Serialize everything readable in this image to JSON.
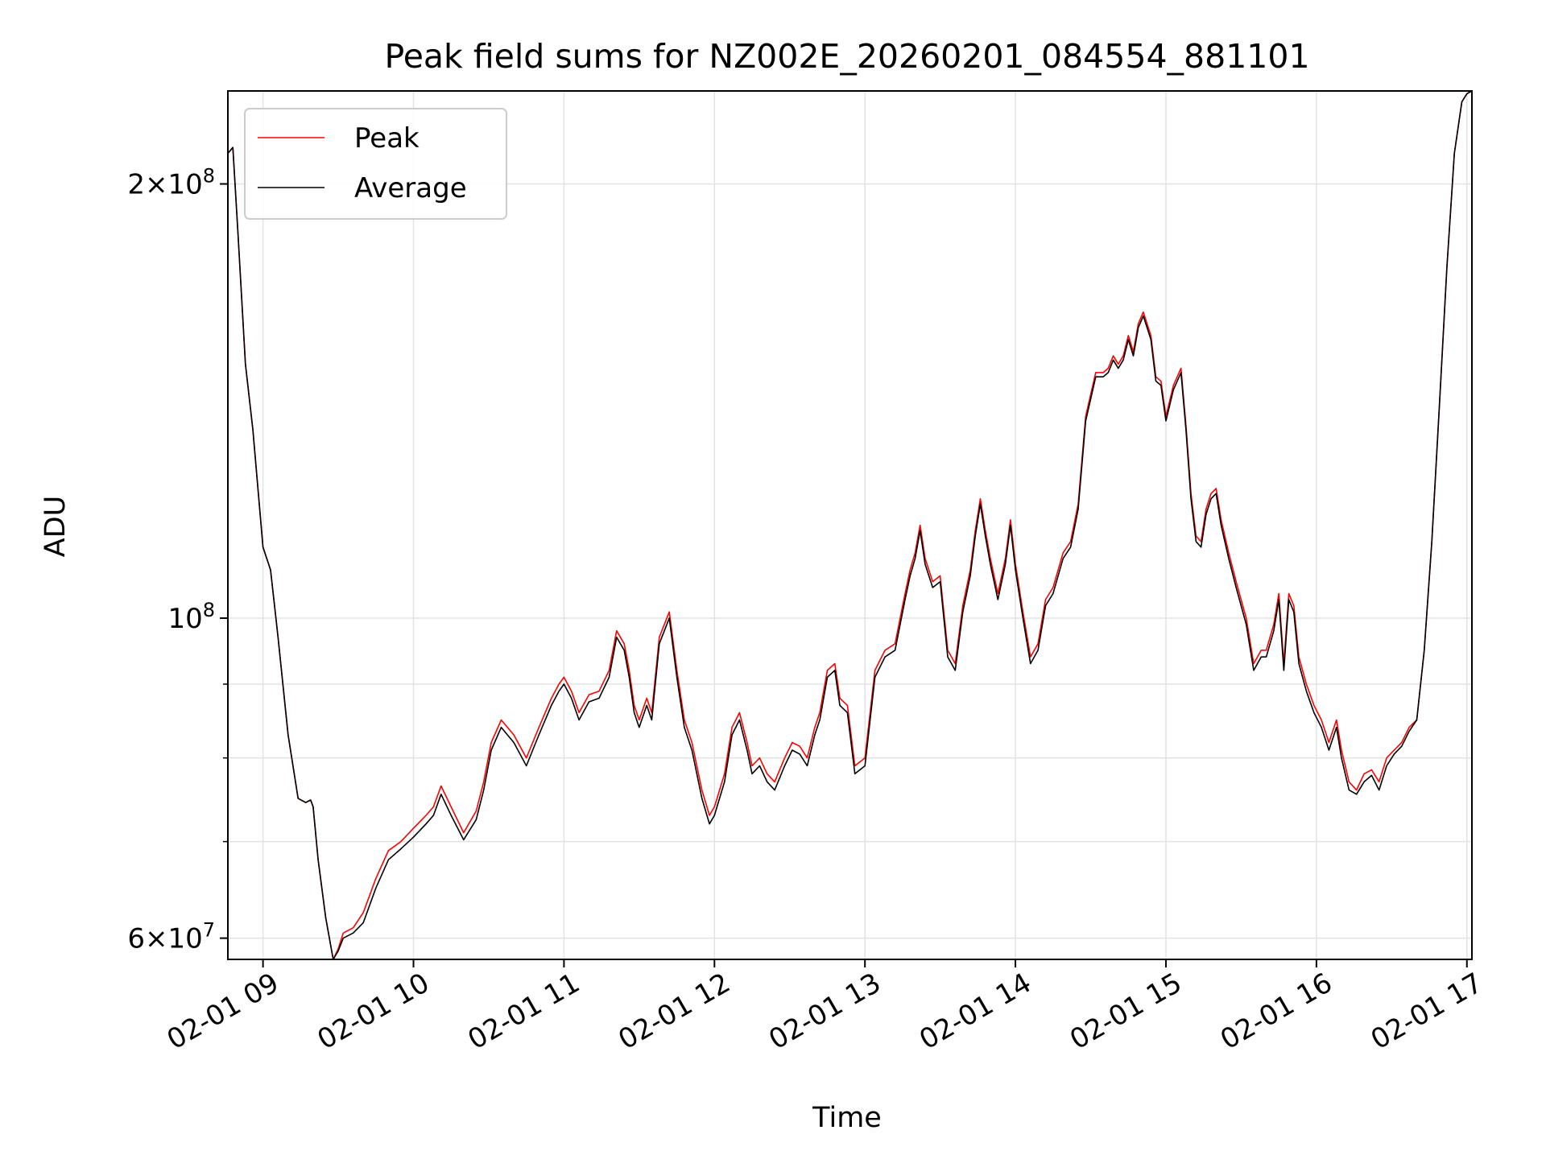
{
  "chart_data": {
    "type": "line",
    "title": "Peak field sums for NZ002E_20260201_084554_881101",
    "xlabel": "Time",
    "ylabel": "ADU",
    "y_scale": "log",
    "ylim": [
      58000000,
      232000000
    ],
    "xlim": [
      "2026-02-01 08:46",
      "2026-02-01 17:02"
    ],
    "x_ticks": [
      "2026-02-01 09:00",
      "2026-02-01 10:00",
      "2026-02-01 11:00",
      "2026-02-01 12:00",
      "2026-02-01 13:00",
      "2026-02-01 14:00",
      "2026-02-01 15:00",
      "2026-02-01 16:00",
      "2026-02-01 17:00"
    ],
    "x_tick_labels": [
      "02-01 09",
      "02-01 10",
      "02-01 11",
      "02-01 12",
      "02-01 13",
      "02-01 14",
      "02-01 15",
      "02-01 16",
      "02-01 17"
    ],
    "y_major_ticks": [
      {
        "value": 60000000,
        "mantissa": "6",
        "base": "10",
        "exp": "7"
      },
      {
        "value": 100000000,
        "mantissa": "",
        "base": "10",
        "exp": "8"
      },
      {
        "value": 200000000,
        "mantissa": "2",
        "base": "10",
        "exp": "8"
      }
    ],
    "y_minor_ticks": [
      70000000,
      80000000,
      90000000
    ],
    "grid": true,
    "legend_position": "top-left",
    "colors": {
      "peak": "#ff0000",
      "average": "#000000",
      "grid": "#e3e3e3"
    },
    "series": [
      {
        "name": "Peak",
        "color": "#ff0000",
        "x": [
          "2026-02-01 08:46",
          "2026-02-01 08:48",
          "2026-02-01 08:50",
          "2026-02-01 08:53",
          "2026-02-01 08:56",
          "2026-02-01 09:00",
          "2026-02-01 09:03",
          "2026-02-01 09:06",
          "2026-02-01 09:10",
          "2026-02-01 09:14",
          "2026-02-01 09:17",
          "2026-02-01 09:19",
          "2026-02-01 09:20",
          "2026-02-01 09:22",
          "2026-02-01 09:25",
          "2026-02-01 09:28",
          "2026-02-01 09:30",
          "2026-02-01 09:32",
          "2026-02-01 09:36",
          "2026-02-01 09:40",
          "2026-02-01 09:45",
          "2026-02-01 09:50",
          "2026-02-01 09:55",
          "2026-02-01 10:00",
          "2026-02-01 10:05",
          "2026-02-01 10:08",
          "2026-02-01 10:11",
          "2026-02-01 10:15",
          "2026-02-01 10:20",
          "2026-02-01 10:25",
          "2026-02-01 10:28",
          "2026-02-01 10:31",
          "2026-02-01 10:35",
          "2026-02-01 10:40",
          "2026-02-01 10:45",
          "2026-02-01 10:50",
          "2026-02-01 10:55",
          "2026-02-01 10:58",
          "2026-02-01 11:00",
          "2026-02-01 11:03",
          "2026-02-01 11:06",
          "2026-02-01 11:10",
          "2026-02-01 11:14",
          "2026-02-01 11:18",
          "2026-02-01 11:21",
          "2026-02-01 11:24",
          "2026-02-01 11:26",
          "2026-02-01 11:28",
          "2026-02-01 11:30",
          "2026-02-01 11:33",
          "2026-02-01 11:35",
          "2026-02-01 11:38",
          "2026-02-01 11:42",
          "2026-02-01 11:45",
          "2026-02-01 11:48",
          "2026-02-01 11:51",
          "2026-02-01 11:55",
          "2026-02-01 11:58",
          "2026-02-01 12:00",
          "2026-02-01 12:04",
          "2026-02-01 12:07",
          "2026-02-01 12:10",
          "2026-02-01 12:13",
          "2026-02-01 12:15",
          "2026-02-01 12:18",
          "2026-02-01 12:21",
          "2026-02-01 12:24",
          "2026-02-01 12:28",
          "2026-02-01 12:31",
          "2026-02-01 12:34",
          "2026-02-01 12:37",
          "2026-02-01 12:40",
          "2026-02-01 12:42",
          "2026-02-01 12:45",
          "2026-02-01 12:48",
          "2026-02-01 12:50",
          "2026-02-01 12:53",
          "2026-02-01 12:56",
          "2026-02-01 13:00",
          "2026-02-01 13:04",
          "2026-02-01 13:08",
          "2026-02-01 13:12",
          "2026-02-01 13:16",
          "2026-02-01 13:18",
          "2026-02-01 13:20",
          "2026-02-01 13:22",
          "2026-02-01 13:24",
          "2026-02-01 13:27",
          "2026-02-01 13:30",
          "2026-02-01 13:33",
          "2026-02-01 13:36",
          "2026-02-01 13:39",
          "2026-02-01 13:42",
          "2026-02-01 13:44",
          "2026-02-01 13:46",
          "2026-02-01 13:48",
          "2026-02-01 13:50",
          "2026-02-01 13:53",
          "2026-02-01 13:56",
          "2026-02-01 13:58",
          "2026-02-01 14:00",
          "2026-02-01 14:03",
          "2026-02-01 14:06",
          "2026-02-01 14:09",
          "2026-02-01 14:12",
          "2026-02-01 14:15",
          "2026-02-01 14:19",
          "2026-02-01 14:22",
          "2026-02-01 14:25",
          "2026-02-01 14:28",
          "2026-02-01 14:32",
          "2026-02-01 14:35",
          "2026-02-01 14:37",
          "2026-02-01 14:39",
          "2026-02-01 14:41",
          "2026-02-01 14:43",
          "2026-02-01 14:45",
          "2026-02-01 14:47",
          "2026-02-01 14:49",
          "2026-02-01 14:51",
          "2026-02-01 14:54",
          "2026-02-01 14:56",
          "2026-02-01 14:58",
          "2026-02-01 15:00",
          "2026-02-01 15:03",
          "2026-02-01 15:06",
          "2026-02-01 15:08",
          "2026-02-01 15:10",
          "2026-02-01 15:12",
          "2026-02-01 15:14",
          "2026-02-01 15:16",
          "2026-02-01 15:18",
          "2026-02-01 15:20",
          "2026-02-01 15:22",
          "2026-02-01 15:25",
          "2026-02-01 15:28",
          "2026-02-01 15:32",
          "2026-02-01 15:35",
          "2026-02-01 15:38",
          "2026-02-01 15:40",
          "2026-02-01 15:43",
          "2026-02-01 15:45",
          "2026-02-01 15:47",
          "2026-02-01 15:49",
          "2026-02-01 15:51",
          "2026-02-01 15:53",
          "2026-02-01 15:56",
          "2026-02-01 15:59",
          "2026-02-01 16:02",
          "2026-02-01 16:05",
          "2026-02-01 16:08",
          "2026-02-01 16:10",
          "2026-02-01 16:13",
          "2026-02-01 16:16",
          "2026-02-01 16:19",
          "2026-02-01 16:22",
          "2026-02-01 16:25",
          "2026-02-01 16:28",
          "2026-02-01 16:31",
          "2026-02-01 16:34",
          "2026-02-01 16:37",
          "2026-02-01 16:40",
          "2026-02-01 16:43",
          "2026-02-01 16:46",
          "2026-02-01 16:49",
          "2026-02-01 16:52",
          "2026-02-01 16:55",
          "2026-02-01 16:58",
          "2026-02-01 17:00",
          "2026-02-01 17:02"
        ],
        "y": [
          210000000,
          212000000,
          185000000,
          150000000,
          135000000,
          112000000,
          108000000,
          97000000,
          83000000,
          75000000,
          74500000,
          74800000,
          74000000,
          68000000,
          62000000,
          58000000,
          59000000,
          60500000,
          61000000,
          62500000,
          66000000,
          69000000,
          70000000,
          71500000,
          73000000,
          74000000,
          76500000,
          74000000,
          71000000,
          73500000,
          77000000,
          82000000,
          85000000,
          83000000,
          80000000,
          84000000,
          88000000,
          90000000,
          91000000,
          89000000,
          86000000,
          88500000,
          89000000,
          92000000,
          98000000,
          96000000,
          92000000,
          87000000,
          85000000,
          88000000,
          86000000,
          97000000,
          101000000,
          92000000,
          85000000,
          82000000,
          76000000,
          73000000,
          74000000,
          78000000,
          84000000,
          86000000,
          82000000,
          79000000,
          80000000,
          78000000,
          77000000,
          80000000,
          82000000,
          81500000,
          80000000,
          84000000,
          86000000,
          92000000,
          93000000,
          88000000,
          87000000,
          79000000,
          80000000,
          92000000,
          95000000,
          96000000,
          104000000,
          108000000,
          111000000,
          116000000,
          110000000,
          106000000,
          107000000,
          95000000,
          93000000,
          102000000,
          108000000,
          115000000,
          121000000,
          115000000,
          110000000,
          104000000,
          110000000,
          117000000,
          109000000,
          101000000,
          94000000,
          96000000,
          103000000,
          105000000,
          111000000,
          113000000,
          120000000,
          138000000,
          148000000,
          148000000,
          149000000,
          152000000,
          150000000,
          152000000,
          157000000,
          153000000,
          160000000,
          163000000,
          157000000,
          147000000,
          146000000,
          138000000,
          145000000,
          149000000,
          136000000,
          122000000,
          114000000,
          113000000,
          119000000,
          122000000,
          123000000,
          117000000,
          111000000,
          106000000,
          100000000,
          93000000,
          95000000,
          95000000,
          99000000,
          104000000,
          93000000,
          104000000,
          102000000,
          94000000,
          90000000,
          87000000,
          85000000,
          82000000,
          85000000,
          81000000,
          77000000,
          76000000,
          78000000,
          78500000,
          77000000,
          80000000,
          81000000,
          82000000,
          84000000,
          85000000,
          95000000,
          113000000,
          140000000,
          175000000,
          210000000,
          228000000,
          231000000,
          232000000
        ]
      },
      {
        "name": "Average",
        "color": "#000000",
        "x": [
          "2026-02-01 08:46",
          "2026-02-01 08:48",
          "2026-02-01 08:50",
          "2026-02-01 08:53",
          "2026-02-01 08:56",
          "2026-02-01 09:00",
          "2026-02-01 09:03",
          "2026-02-01 09:06",
          "2026-02-01 09:10",
          "2026-02-01 09:14",
          "2026-02-01 09:17",
          "2026-02-01 09:19",
          "2026-02-01 09:20",
          "2026-02-01 09:22",
          "2026-02-01 09:25",
          "2026-02-01 09:28",
          "2026-02-01 09:30",
          "2026-02-01 09:32",
          "2026-02-01 09:36",
          "2026-02-01 09:40",
          "2026-02-01 09:45",
          "2026-02-01 09:50",
          "2026-02-01 09:55",
          "2026-02-01 10:00",
          "2026-02-01 10:05",
          "2026-02-01 10:08",
          "2026-02-01 10:11",
          "2026-02-01 10:15",
          "2026-02-01 10:20",
          "2026-02-01 10:25",
          "2026-02-01 10:28",
          "2026-02-01 10:31",
          "2026-02-01 10:35",
          "2026-02-01 10:40",
          "2026-02-01 10:45",
          "2026-02-01 10:50",
          "2026-02-01 10:55",
          "2026-02-01 10:58",
          "2026-02-01 11:00",
          "2026-02-01 11:03",
          "2026-02-01 11:06",
          "2026-02-01 11:10",
          "2026-02-01 11:14",
          "2026-02-01 11:18",
          "2026-02-01 11:21",
          "2026-02-01 11:24",
          "2026-02-01 11:26",
          "2026-02-01 11:28",
          "2026-02-01 11:30",
          "2026-02-01 11:33",
          "2026-02-01 11:35",
          "2026-02-01 11:38",
          "2026-02-01 11:42",
          "2026-02-01 11:45",
          "2026-02-01 11:48",
          "2026-02-01 11:51",
          "2026-02-01 11:55",
          "2026-02-01 11:58",
          "2026-02-01 12:00",
          "2026-02-01 12:04",
          "2026-02-01 12:07",
          "2026-02-01 12:10",
          "2026-02-01 12:13",
          "2026-02-01 12:15",
          "2026-02-01 12:18",
          "2026-02-01 12:21",
          "2026-02-01 12:24",
          "2026-02-01 12:28",
          "2026-02-01 12:31",
          "2026-02-01 12:34",
          "2026-02-01 12:37",
          "2026-02-01 12:40",
          "2026-02-01 12:42",
          "2026-02-01 12:45",
          "2026-02-01 12:48",
          "2026-02-01 12:50",
          "2026-02-01 12:53",
          "2026-02-01 12:56",
          "2026-02-01 13:00",
          "2026-02-01 13:04",
          "2026-02-01 13:08",
          "2026-02-01 13:12",
          "2026-02-01 13:16",
          "2026-02-01 13:18",
          "2026-02-01 13:20",
          "2026-02-01 13:22",
          "2026-02-01 13:24",
          "2026-02-01 13:27",
          "2026-02-01 13:30",
          "2026-02-01 13:33",
          "2026-02-01 13:36",
          "2026-02-01 13:39",
          "2026-02-01 13:42",
          "2026-02-01 13:44",
          "2026-02-01 13:46",
          "2026-02-01 13:48",
          "2026-02-01 13:50",
          "2026-02-01 13:53",
          "2026-02-01 13:56",
          "2026-02-01 13:58",
          "2026-02-01 14:00",
          "2026-02-01 14:03",
          "2026-02-01 14:06",
          "2026-02-01 14:09",
          "2026-02-01 14:12",
          "2026-02-01 14:15",
          "2026-02-01 14:19",
          "2026-02-01 14:22",
          "2026-02-01 14:25",
          "2026-02-01 14:28",
          "2026-02-01 14:32",
          "2026-02-01 14:35",
          "2026-02-01 14:37",
          "2026-02-01 14:39",
          "2026-02-01 14:41",
          "2026-02-01 14:43",
          "2026-02-01 14:45",
          "2026-02-01 14:47",
          "2026-02-01 14:49",
          "2026-02-01 14:51",
          "2026-02-01 14:54",
          "2026-02-01 14:56",
          "2026-02-01 14:58",
          "2026-02-01 15:00",
          "2026-02-01 15:03",
          "2026-02-01 15:06",
          "2026-02-01 15:08",
          "2026-02-01 15:10",
          "2026-02-01 15:12",
          "2026-02-01 15:14",
          "2026-02-01 15:16",
          "2026-02-01 15:18",
          "2026-02-01 15:20",
          "2026-02-01 15:22",
          "2026-02-01 15:25",
          "2026-02-01 15:28",
          "2026-02-01 15:32",
          "2026-02-01 15:35",
          "2026-02-01 15:38",
          "2026-02-01 15:40",
          "2026-02-01 15:43",
          "2026-02-01 15:45",
          "2026-02-01 15:47",
          "2026-02-01 15:49",
          "2026-02-01 15:51",
          "2026-02-01 15:53",
          "2026-02-01 15:56",
          "2026-02-01 15:59",
          "2026-02-01 16:02",
          "2026-02-01 16:05",
          "2026-02-01 16:08",
          "2026-02-01 16:10",
          "2026-02-01 16:13",
          "2026-02-01 16:16",
          "2026-02-01 16:19",
          "2026-02-01 16:22",
          "2026-02-01 16:25",
          "2026-02-01 16:28",
          "2026-02-01 16:31",
          "2026-02-01 16:34",
          "2026-02-01 16:37",
          "2026-02-01 16:40",
          "2026-02-01 16:43",
          "2026-02-01 16:46",
          "2026-02-01 16:49",
          "2026-02-01 16:52",
          "2026-02-01 16:55",
          "2026-02-01 16:58",
          "2026-02-01 17:00",
          "2026-02-01 17:02"
        ],
        "y": [
          210000000,
          212000000,
          185000000,
          150000000,
          135000000,
          112000000,
          108000000,
          97000000,
          83000000,
          75000000,
          74500000,
          74800000,
          74000000,
          68000000,
          62000000,
          58000000,
          58800000,
          60000000,
          60500000,
          61500000,
          65000000,
          68000000,
          69200000,
          70500000,
          72000000,
          73000000,
          75500000,
          73000000,
          70200000,
          72500000,
          76000000,
          81000000,
          84000000,
          82000000,
          79000000,
          83000000,
          87000000,
          89000000,
          90000000,
          88000000,
          85000000,
          87500000,
          88000000,
          91000000,
          97000000,
          95000000,
          91000000,
          86000000,
          84000000,
          87000000,
          85000000,
          96000000,
          100000000,
          91000000,
          84000000,
          81000000,
          75000000,
          72000000,
          73000000,
          77000000,
          83000000,
          85000000,
          81000000,
          78000000,
          79000000,
          77000000,
          76000000,
          79000000,
          81000000,
          80500000,
          79000000,
          83000000,
          85000000,
          91000000,
          92000000,
          87000000,
          86000000,
          78000000,
          79000000,
          91000000,
          94000000,
          95000000,
          103000000,
          107000000,
          110000000,
          115000000,
          109000000,
          105000000,
          106000000,
          94000000,
          92000000,
          101000000,
          107000000,
          114000000,
          120000000,
          114000000,
          109000000,
          103000000,
          109000000,
          116000000,
          108000000,
          100000000,
          93000000,
          95000000,
          102000000,
          104000000,
          110000000,
          112000000,
          119000000,
          137000000,
          147000000,
          147000000,
          148000000,
          151000000,
          149000000,
          151000000,
          156000000,
          152000000,
          159000000,
          162000000,
          156000000,
          146000000,
          145000000,
          137000000,
          144000000,
          148000000,
          135000000,
          121000000,
          113000000,
          112000000,
          118000000,
          121000000,
          122000000,
          116000000,
          110000000,
          105000000,
          99000000,
          92000000,
          94000000,
          94000000,
          98000000,
          103000000,
          92000000,
          103000000,
          101000000,
          93000000,
          89000000,
          86000000,
          84000000,
          81000000,
          84000000,
          80000000,
          76000000,
          75500000,
          77000000,
          77800000,
          76000000,
          79000000,
          80500000,
          81500000,
          83500000,
          85000000,
          95000000,
          113000000,
          140000000,
          175000000,
          210000000,
          228000000,
          231000000,
          232000000
        ]
      }
    ]
  }
}
